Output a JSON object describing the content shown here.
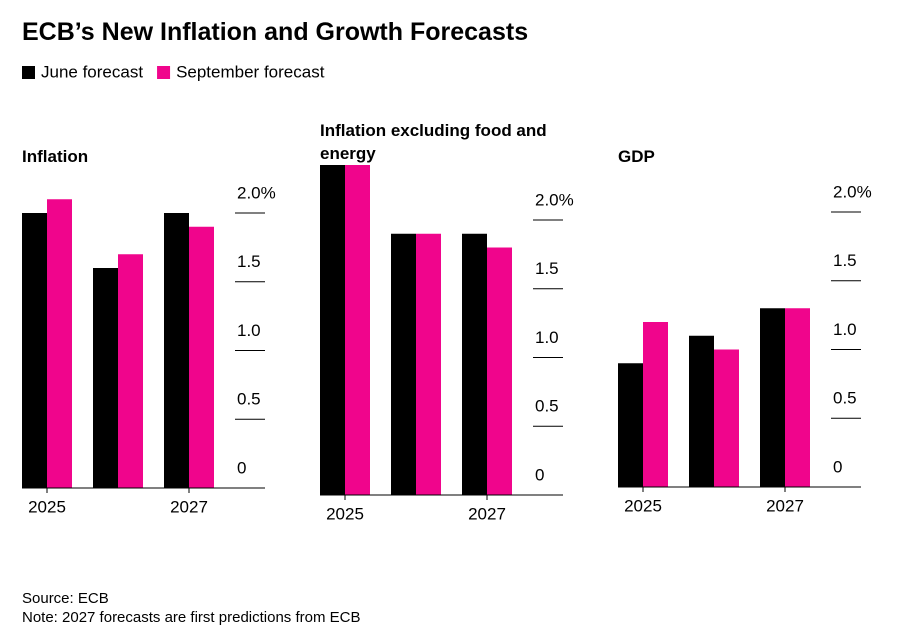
{
  "title": "ECB’s New Inflation and Growth Forecasts",
  "legend": [
    {
      "name": "June forecast",
      "color": "#000000"
    },
    {
      "name": "September forecast",
      "color": "#f0058c"
    }
  ],
  "chart_data": [
    {
      "type": "bar",
      "title": "Inflation",
      "categories": [
        "2025",
        null,
        "2027"
      ],
      "series": [
        {
          "values": [
            2.0,
            1.6,
            2.0
          ]
        },
        {
          "values": [
            2.1,
            1.7,
            1.9
          ]
        }
      ],
      "ylim": [
        0,
        2.4
      ],
      "yticks": [
        0,
        0.5,
        {
          "value": 1,
          "label": "1.0"
        },
        1.5,
        {
          "value": 2,
          "label": "2.0%"
        }
      ]
    },
    {
      "type": "bar",
      "title": "Inflation excluding food and energy",
      "categories": [
        "2025",
        null,
        "2027"
      ],
      "series": [
        {
          "values": [
            2.4,
            1.9,
            1.9
          ]
        },
        {
          "values": [
            2.4,
            1.9,
            1.8
          ]
        }
      ],
      "ylim": [
        0,
        2.4
      ],
      "yticks": [
        0,
        0.5,
        {
          "value": 1,
          "label": "1.0"
        },
        1.5,
        {
          "value": 2,
          "label": "2.0%"
        }
      ]
    },
    {
      "type": "bar",
      "title": "GDP",
      "categories": [
        "2025",
        null,
        "2027"
      ],
      "series": [
        {
          "values": [
            0.9,
            1.1,
            1.3
          ]
        },
        {
          "values": [
            1.2,
            1.0,
            1.3
          ]
        }
      ],
      "ylim": [
        0,
        2.4
      ],
      "yticks": [
        0,
        0.5,
        {
          "value": 1,
          "label": "1.0"
        },
        1.5,
        {
          "value": 2,
          "label": "2.0%"
        }
      ]
    }
  ],
  "source": "Source: ECB",
  "note": "Note: 2027 forecasts are first predictions from ECB"
}
